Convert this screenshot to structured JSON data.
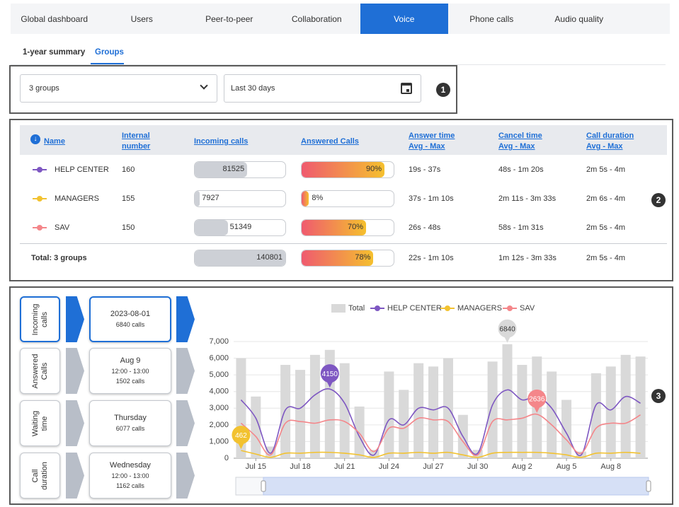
{
  "tabs": {
    "items": [
      "Global dashboard",
      "Users",
      "Peer-to-peer",
      "Collaboration",
      "Voice",
      "Phone calls",
      "Audio quality"
    ],
    "active": 4
  },
  "subtabs": {
    "items": [
      "1-year summary",
      "Groups"
    ],
    "active": 1
  },
  "filters": {
    "group": "3 groups",
    "period": "Last 30 days"
  },
  "callouts": [
    "1",
    "2",
    "3"
  ],
  "table": {
    "headers": [
      {
        "label": "Name"
      },
      {
        "label": "Internal number"
      },
      {
        "label": "Incoming calls"
      },
      {
        "label": "Answered Calls"
      },
      {
        "label": "Answer time",
        "sub": "Avg - Max"
      },
      {
        "label": "Cancel time",
        "sub": "Avg - Max"
      },
      {
        "label": "Call duration",
        "sub": "Avg - Max"
      }
    ],
    "rows": [
      {
        "name": "HELP CENTER",
        "color": "#7e57c2",
        "number": 160,
        "incoming": 81525,
        "answered": 90,
        "answered_label": "90%",
        "answer_time": "19s - 37s",
        "cancel_time": "48s - 1m 20s",
        "duration": "2m 5s - 4m"
      },
      {
        "name": "MANAGERS",
        "color": "#f2c230",
        "number": 155,
        "incoming": 7927,
        "answered": 8,
        "answered_label": "8%",
        "answer_time": "37s - 1m 10s",
        "cancel_time": "2m 11s - 3m 33s",
        "duration": "2m 6s - 4m"
      },
      {
        "name": "SAV",
        "color": "#f4868a",
        "number": 150,
        "incoming": 51349,
        "answered": 70,
        "answered_label": "70%",
        "answer_time": "26s - 48s",
        "cancel_time": "58s - 1m 31s",
        "duration": "2m 5s - 4m"
      }
    ],
    "total": {
      "name": "Total: 3 groups",
      "incoming": 140801,
      "answered": 78,
      "answered_label": "78%",
      "answer_time": "22s - 1m 10s",
      "cancel_time": "1m 12s - 3m 33s",
      "duration": "2m 5s - 4m"
    }
  },
  "summary": {
    "active": 0,
    "items": [
      {
        "metric": "Incoming calls",
        "lines": [
          "2023-08-01",
          "6840 calls"
        ]
      },
      {
        "metric": "Answered Calls",
        "lines": [
          "Aug 9",
          "12:00 - 13:00",
          "1502 calls"
        ]
      },
      {
        "metric": "Waiting time",
        "lines": [
          "Thursday",
          "6077 calls"
        ]
      },
      {
        "metric": "Call duration",
        "lines": [
          "Wednesday",
          "12:00 - 13:00",
          "1162 calls"
        ]
      }
    ]
  },
  "chart_data": {
    "type": "combo",
    "legend": "top",
    "grid": true,
    "categories": [
      null,
      "Jul 15",
      null,
      null,
      "Jul 18",
      null,
      null,
      "Jul 21",
      null,
      null,
      "Jul 24",
      null,
      null,
      "Jul 27",
      null,
      null,
      "Jul 30",
      null,
      null,
      "Aug 2",
      null,
      null,
      "Aug 5",
      null,
      null,
      "Aug 8",
      null,
      null
    ],
    "ylim": [
      0,
      7000
    ],
    "yticks": [
      0,
      {
        "value": 1000,
        "label": "1,000"
      },
      {
        "value": 2000,
        "label": "2,000"
      },
      {
        "value": 3000,
        "label": "3,000"
      },
      {
        "value": 4000,
        "label": "4,000"
      },
      {
        "value": 5000,
        "label": "5,000"
      },
      {
        "value": 6000,
        "label": "6,000"
      },
      {
        "value": 7000,
        "label": "7,000"
      }
    ],
    "series": [
      {
        "name": "Total",
        "type": "bar",
        "color": "#d9d9d9",
        "highlight": 18,
        "values": [
          6000,
          3700,
          700,
          5600,
          5300,
          6200,
          6500,
          5700,
          3100,
          500,
          5200,
          4100,
          5700,
          5500,
          6000,
          2600,
          500,
          5800,
          6840,
          5600,
          6100,
          5200,
          3500,
          400,
          5100,
          5500,
          6200,
          6100
        ]
      },
      {
        "name": "HELP CENTER",
        "type": "line",
        "color": "#7e57c2",
        "highlight": 6,
        "values": [
          3500,
          2400,
          300,
          2900,
          3000,
          3800,
          4150,
          3300,
          1300,
          200,
          2300,
          2000,
          3000,
          2900,
          3000,
          1300,
          300,
          3200,
          4100,
          3500,
          3700,
          3000,
          1500,
          200,
          3200,
          2900,
          3700,
          3300
        ]
      },
      {
        "name": "MANAGERS",
        "type": "line",
        "color": "#f2c230",
        "highlight": 0,
        "values": [
          462,
          250,
          50,
          300,
          300,
          350,
          350,
          300,
          200,
          50,
          300,
          300,
          350,
          300,
          350,
          200,
          50,
          300,
          350,
          350,
          350,
          300,
          200,
          50,
          300,
          300,
          350,
          300
        ]
      },
      {
        "name": "SAV",
        "type": "line",
        "color": "#f4868a",
        "highlight": 20,
        "values": [
          2100,
          1300,
          200,
          2100,
          2200,
          2100,
          2300,
          2200,
          1500,
          400,
          1800,
          1800,
          2400,
          2300,
          2200,
          1000,
          200,
          2200,
          2300,
          2400,
          2636,
          2000,
          1100,
          300,
          1800,
          2100,
          2100,
          2600
        ]
      }
    ]
  }
}
